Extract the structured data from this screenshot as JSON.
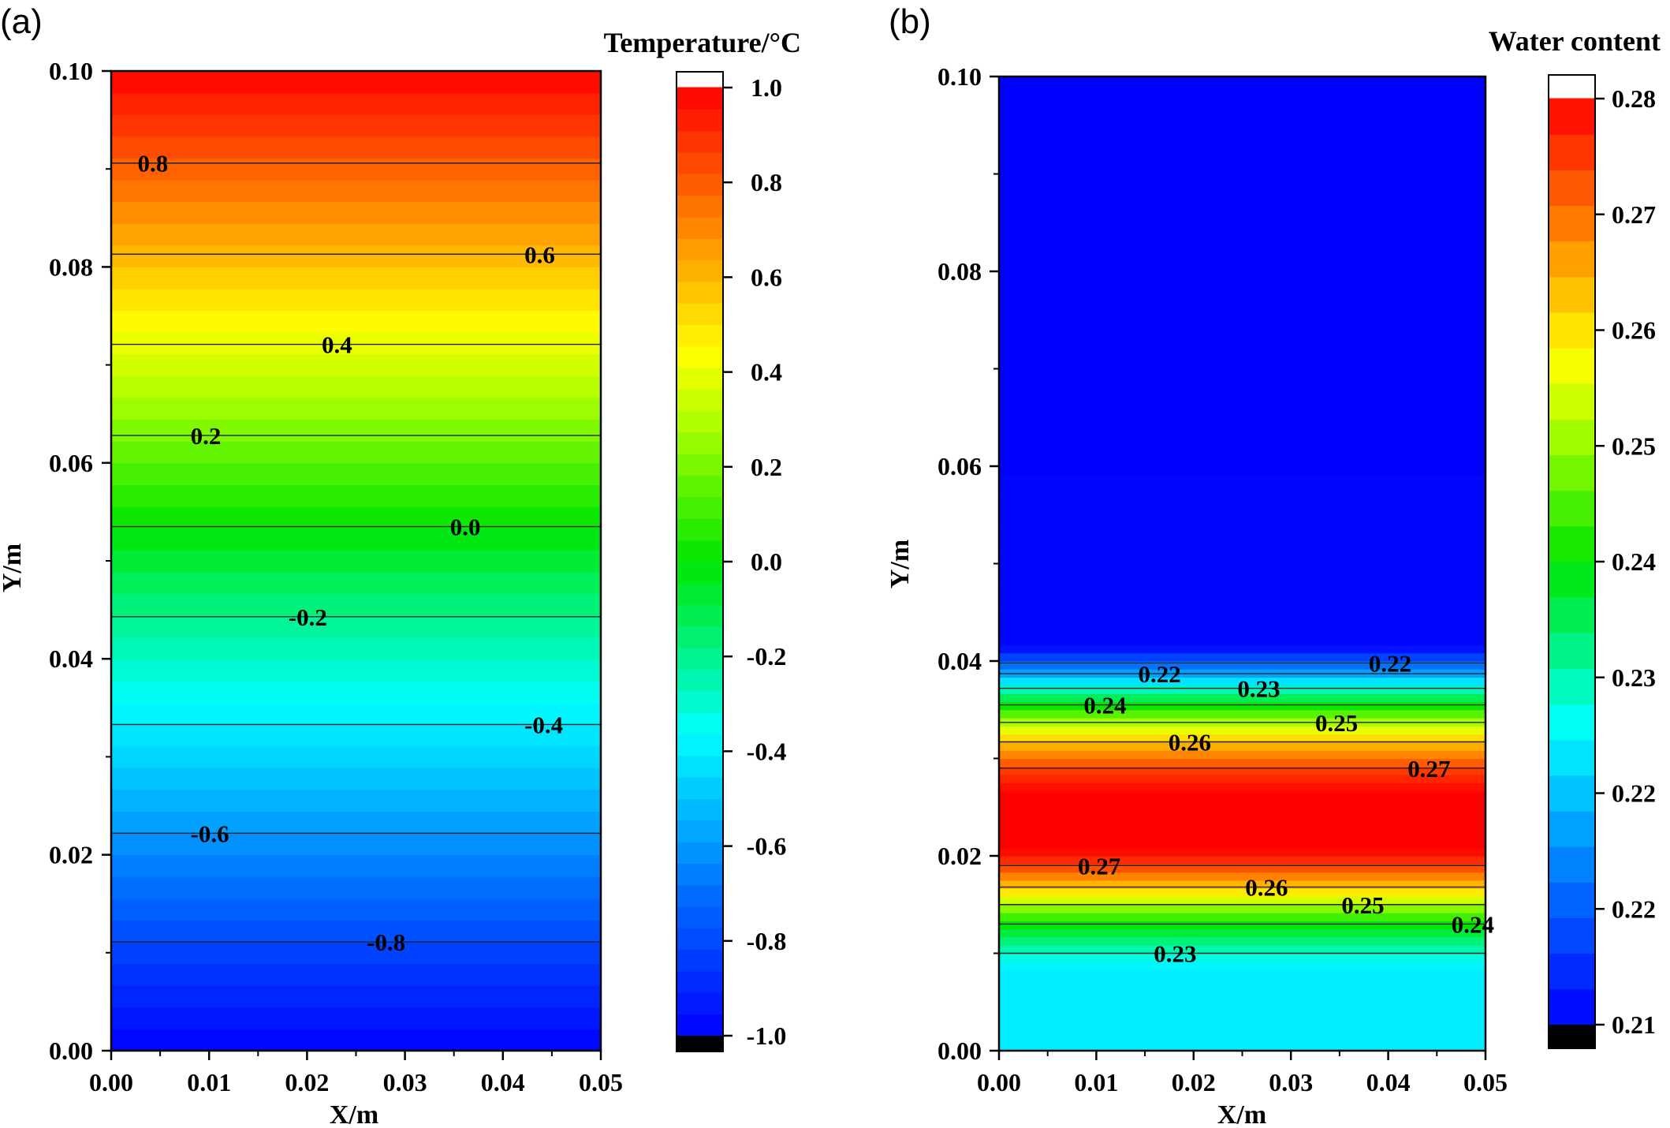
{
  "chart_data": [
    {
      "type": "heatmap",
      "panel_label": "(a)",
      "colorbar_title": "Temperature/°C",
      "xlabel": "X/m",
      "ylabel": "Y/m",
      "xlim": [
        0.0,
        0.05
      ],
      "ylim": [
        0.0,
        0.1
      ],
      "x_ticks": [
        "0.00",
        "0.01",
        "0.02",
        "0.03",
        "0.04",
        "0.05"
      ],
      "y_ticks": [
        "0.00",
        "0.02",
        "0.04",
        "0.06",
        "0.08",
        "0.10"
      ],
      "colorbar_range": [
        -1.0,
        1.0
      ],
      "colorbar_ticks": [
        "-1.0",
        "-0.8",
        "-0.6",
        "-0.4",
        "-0.2",
        "0.0",
        "0.2",
        "0.4",
        "0.6",
        "0.8",
        "1.0"
      ],
      "profile": {
        "y": [
          0.0,
          0.0111,
          0.0222,
          0.0333,
          0.0443,
          0.0535,
          0.0628,
          0.0721,
          0.0813,
          0.0906,
          0.1
        ],
        "value": [
          -1.0,
          -0.8,
          -0.6,
          -0.4,
          -0.2,
          0.0,
          0.2,
          0.4,
          0.6,
          0.8,
          1.0
        ]
      },
      "contours": [
        {
          "label": "0.8",
          "y": 0.0906,
          "label_x": 0.0027
        },
        {
          "label": "0.6",
          "y": 0.0813,
          "label_x": 0.0422
        },
        {
          "label": "0.4",
          "y": 0.0721,
          "label_x": 0.0215
        },
        {
          "label": "0.2",
          "y": 0.0628,
          "label_x": 0.0081
        },
        {
          "label": "0.0",
          "y": 0.0535,
          "label_x": 0.0346
        },
        {
          "label": "-0.2",
          "y": 0.0443,
          "label_x": 0.0181
        },
        {
          "label": "-0.4",
          "y": 0.0333,
          "label_x": 0.0422
        },
        {
          "label": "-0.6",
          "y": 0.0222,
          "label_x": 0.0081
        },
        {
          "label": "-0.8",
          "y": 0.0111,
          "label_x": 0.0261
        }
      ]
    },
    {
      "type": "heatmap",
      "panel_label": "(b)",
      "colorbar_title": "Water content",
      "xlabel": "X/m",
      "ylabel": "Y/m",
      "xlim": [
        0.0,
        0.05
      ],
      "ylim": [
        0.0,
        0.1
      ],
      "x_ticks": [
        "0.00",
        "0.01",
        "0.02",
        "0.03",
        "0.04",
        "0.05"
      ],
      "y_ticks": [
        "0.00",
        "0.02",
        "0.04",
        "0.06",
        "0.08",
        "0.10"
      ],
      "colorbar_range": [
        0.21,
        0.28
      ],
      "colorbar_ticks": [
        "0.21",
        "0.22",
        "0.22",
        "0.23",
        "0.24",
        "0.25",
        "0.26",
        "0.27",
        "0.28"
      ],
      "profile": {
        "y": [
          0.0,
          0.0085,
          0.01,
          0.013,
          0.015,
          0.0168,
          0.019,
          0.021,
          0.026,
          0.029,
          0.0317,
          0.0337,
          0.0355,
          0.0372,
          0.0387,
          0.0398,
          0.0408,
          0.0415,
          0.059,
          0.0595,
          0.0965,
          0.097,
          0.1
        ],
        "value": [
          0.231,
          0.231,
          0.235,
          0.245,
          0.255,
          0.265,
          0.275,
          0.281,
          0.281,
          0.275,
          0.265,
          0.255,
          0.245,
          0.235,
          0.225,
          0.22,
          0.214,
          0.2105,
          0.2105,
          0.2095,
          0.2095,
          0.2085,
          0.2085
        ]
      },
      "contours": [
        {
          "label": "0.22",
          "y": 0.0398,
          "label_x": 0.038
        },
        {
          "label": "0.22",
          "y": 0.0387,
          "label_x": 0.0143
        },
        {
          "label": "0.23",
          "y": 0.0372,
          "label_x": 0.0245
        },
        {
          "label": "0.24",
          "y": 0.0355,
          "label_x": 0.0087
        },
        {
          "label": "0.25",
          "y": 0.0337,
          "label_x": 0.0325
        },
        {
          "label": "0.26",
          "y": 0.0317,
          "label_x": 0.0174
        },
        {
          "label": "0.27",
          "y": 0.029,
          "label_x": 0.042
        },
        {
          "label": "0.27",
          "y": 0.019,
          "label_x": 0.0081
        },
        {
          "label": "0.26",
          "y": 0.0168,
          "label_x": 0.0253
        },
        {
          "label": "0.25",
          "y": 0.015,
          "label_x": 0.0352
        },
        {
          "label": "0.24",
          "y": 0.013,
          "label_x": 0.0465
        },
        {
          "label": "0.23",
          "y": 0.01,
          "label_x": 0.0159
        }
      ]
    }
  ]
}
